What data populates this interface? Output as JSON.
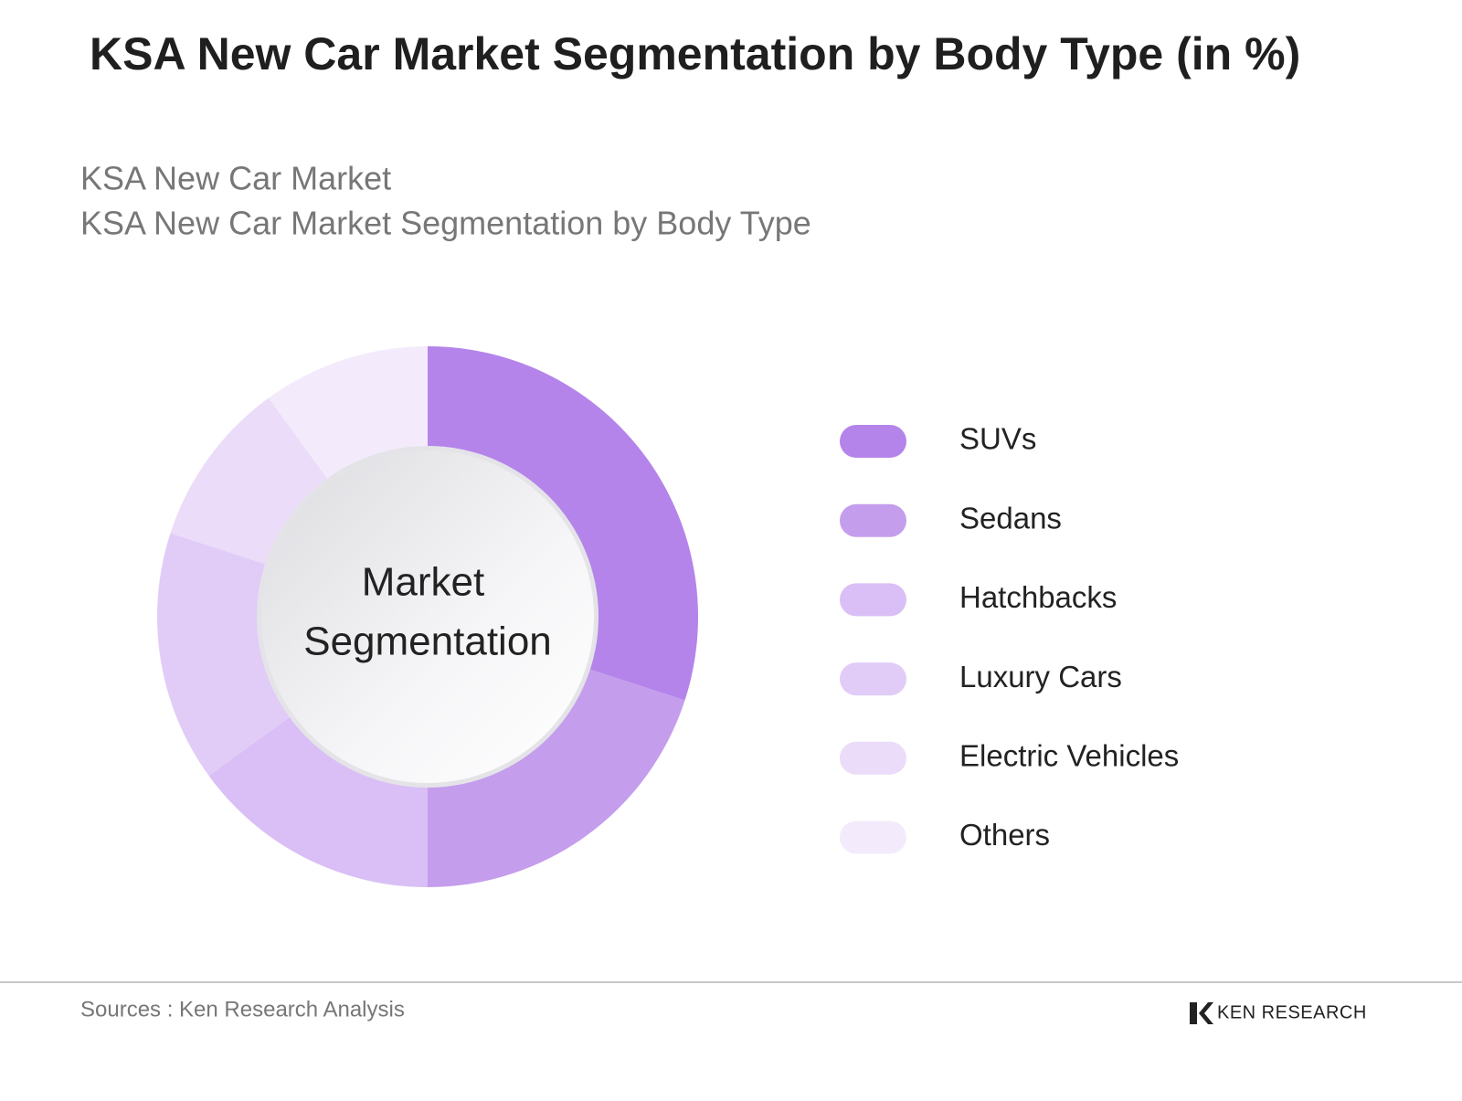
{
  "chart_data": {
    "type": "donut",
    "title": "KSA New Car Market Segmentation by Body Type (in %)",
    "subtitle": [
      "KSA New Car Market",
      "KSA New Car Market Segmentation by Body Type"
    ],
    "center_label": [
      "Market",
      "Segmentation"
    ],
    "categories": [
      "SUVs",
      "Sedans",
      "Hatchbacks",
      "Luxury Cars",
      "Electric Vehicles",
      "Others"
    ],
    "values": [
      30,
      20,
      15,
      15,
      10,
      10
    ],
    "colors": [
      "#b484ea",
      "#c59ded",
      "#d9bff5",
      "#e0ccf7",
      "#ebdcf9",
      "#f3ebfb"
    ],
    "legend": "right"
  },
  "footer": {
    "source": "Sources : Ken Research Analysis",
    "brand": "KEN RESEARCH"
  }
}
